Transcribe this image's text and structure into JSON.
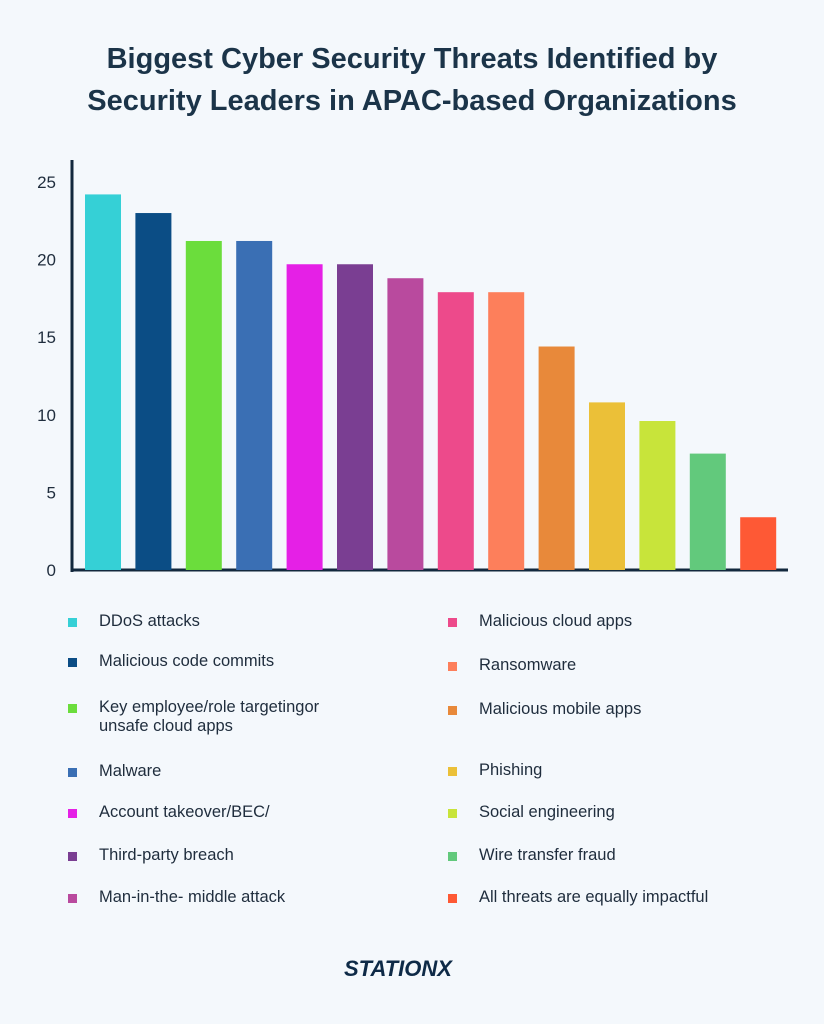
{
  "title_lines": [
    "Biggest Cyber Security Threats Identified by",
    "Security Leaders in APAC-based Organizations"
  ],
  "brand": "STATIONX",
  "chart_data": {
    "type": "bar",
    "title": "Biggest Cyber Security Threats Identified by Security Leaders in APAC-based Organizations",
    "xlabel": "",
    "ylabel": "",
    "ylim": [
      0,
      25
    ],
    "yticks": [
      "0",
      "5",
      "10",
      "15",
      "20",
      "25"
    ],
    "grid": false,
    "legend_position": "bottom",
    "categories": [
      "DDoS attacks",
      "Malicious code commits",
      "Key employee/role targetingor unsafe cloud apps",
      "Malware",
      "Account takeover/BEC/",
      "Third-party breach",
      "Man-in-the- middle attack",
      "Malicious cloud apps",
      "Ransomware",
      "Malicious mobile apps",
      "Phishing",
      "Social engineering",
      "Wire transfer fraud",
      "All threats are equally impactful"
    ],
    "values": [
      24.2,
      23.0,
      21.2,
      21.2,
      19.7,
      19.7,
      18.8,
      17.9,
      17.9,
      14.4,
      10.8,
      9.6,
      7.5,
      3.4
    ],
    "colors": [
      "#35d0d6",
      "#0b4d85",
      "#6bdd3c",
      "#3a6fb4",
      "#e520e6",
      "#7a3e92",
      "#b94a9e",
      "#ed4a8b",
      "#fd7f5b",
      "#e8893a",
      "#ebc038",
      "#c8e43a",
      "#62c97c",
      "#fe5935"
    ]
  }
}
